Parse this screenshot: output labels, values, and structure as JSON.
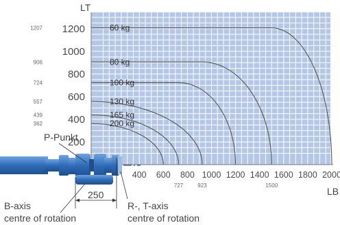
{
  "chart_data": {
    "type": "area",
    "xlabel": "LB",
    "ylabel": "LT",
    "xlim": [
      0,
      2100
    ],
    "ylim": [
      0,
      1350
    ],
    "x_ticks": [
      "400",
      "600",
      "800",
      "1000",
      "1200",
      "1400",
      "1600",
      "1800",
      "2000"
    ],
    "y_ticks": [
      "200",
      "400",
      "600",
      "800",
      "1000",
      "1200"
    ],
    "x_special_ticks": [
      "727",
      "923",
      "1500"
    ],
    "y_special_ticks": [
      "1207",
      "906",
      "724",
      "557",
      "439",
      "362"
    ],
    "series": [
      {
        "name": "60 kg",
        "lt": 1207,
        "lb": 2000,
        "knee_lb": 1500
      },
      {
        "name": "80 kg",
        "lt": 906,
        "lb": 1500,
        "knee_lb": 923
      },
      {
        "name": "100 kg",
        "lt": 724,
        "lb": 1200,
        "knee_lb": 727
      },
      {
        "name": "130 kg",
        "lt": 557,
        "lb": 923,
        "knee_lb": 0
      },
      {
        "name": "165 kg",
        "lt": 439,
        "lb": 727,
        "knee_lb": 0
      },
      {
        "name": "200 kg",
        "lt": 362,
        "lb": 600,
        "knee_lb": 0
      }
    ]
  },
  "annotations": {
    "p_punkt": "P-Punkt",
    "offset": "250",
    "b_axis_line1": "B-axis",
    "b_axis_line2": "centre of rotation",
    "rt_axis_line1": "R-, T-axis",
    "rt_axis_line2": "centre of rotation"
  },
  "colors": {
    "fill": "#b5c7e6",
    "grid": "#ffffff",
    "curve": "#555555",
    "wrist": "#2f6cb8"
  }
}
